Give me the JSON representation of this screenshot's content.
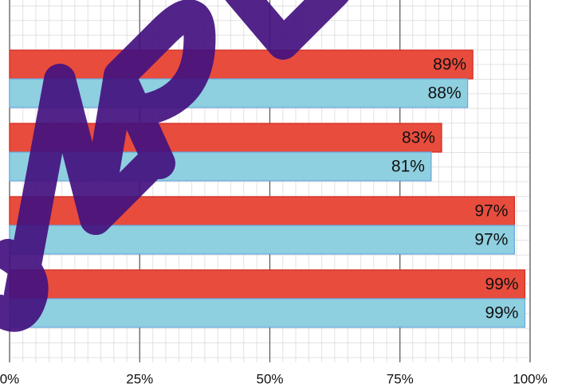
{
  "chart_data": {
    "type": "bar",
    "orientation": "horizontal",
    "categories": [
      null,
      null,
      null,
      null
    ],
    "series": [
      {
        "color": "#e84c3d",
        "values": [
          89,
          83,
          97,
          99
        ],
        "value_labels": [
          "89%",
          "83%",
          "97%",
          "99%"
        ]
      },
      {
        "color": "#8ecfe0",
        "values": [
          88,
          81,
          97,
          99
        ],
        "value_labels": [
          "88%",
          "81%",
          "97%",
          "99%"
        ]
      }
    ],
    "xlim": [
      0,
      100
    ],
    "xticks": [
      {
        "value": 0,
        "label": "0%"
      },
      {
        "value": 25,
        "label": "25%"
      },
      {
        "value": 50,
        "label": "50%"
      },
      {
        "value": 75,
        "label": "75%"
      },
      {
        "value": 100,
        "label": "100%"
      }
    ],
    "grid": true
  }
}
